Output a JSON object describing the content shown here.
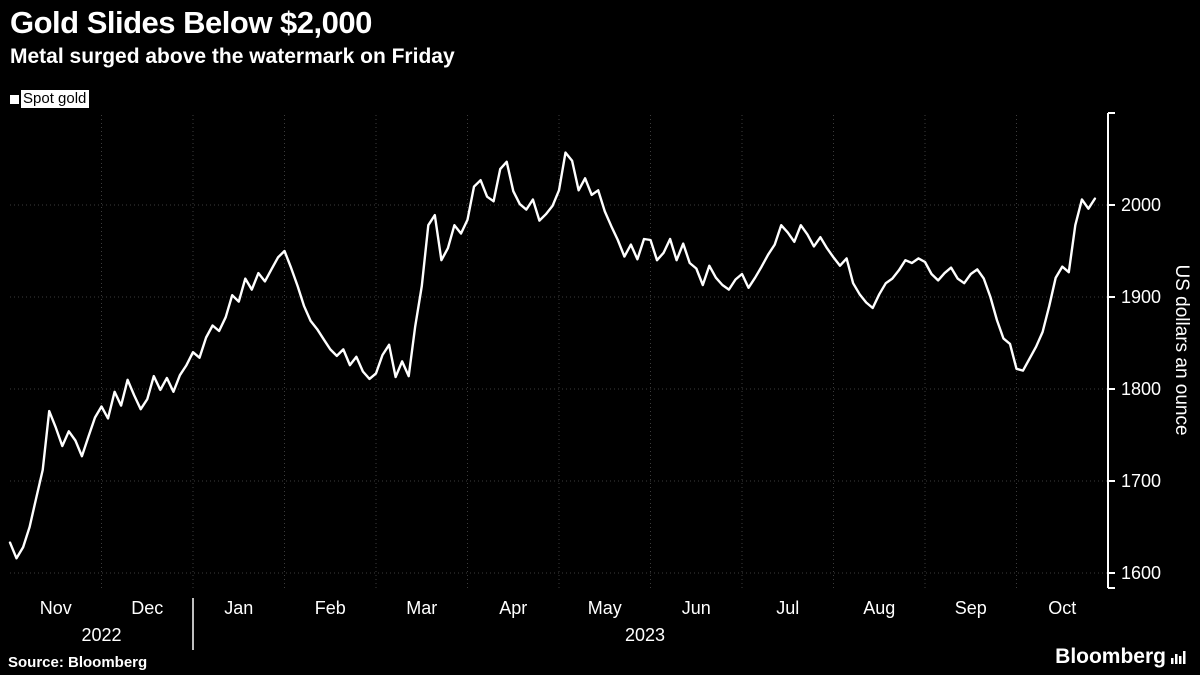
{
  "header": {
    "title": "Gold Slides Below $2,000",
    "subtitle": "Metal surged above the watermark on Friday"
  },
  "legend": {
    "label": "Spot gold"
  },
  "footer": {
    "source": "Source:  Bloomberg",
    "brand": "Bloomberg"
  },
  "chart_data": {
    "type": "line",
    "series_name": "Spot gold",
    "title": "Gold Slides Below $2,000",
    "subtitle": "Metal surged above the watermark on Friday",
    "ylabel": "US dollars an ounce",
    "y_ticks": [
      1600,
      1700,
      1800,
      1900,
      2000
    ],
    "ylim": [
      1590,
      2098
    ],
    "x_months": [
      "Nov",
      "Dec",
      "Jan",
      "Feb",
      "Mar",
      "Apr",
      "May",
      "Jun",
      "Jul",
      "Aug",
      "Sep",
      "Oct"
    ],
    "years": [
      "2022",
      "2023"
    ],
    "points_per_month": 14,
    "line_color": "#ffffff",
    "grid_color": "#3c3c3c",
    "grid": true,
    "legend_position": "top-left",
    "values": [
      1633,
      1616,
      1628,
      1650,
      1681,
      1712,
      1776,
      1758,
      1738,
      1754,
      1744,
      1727,
      1748,
      1769,
      1781,
      1768,
      1797,
      1782,
      1810,
      1793,
      1778,
      1789,
      1814,
      1799,
      1812,
      1797,
      1815,
      1826,
      1840,
      1834,
      1856,
      1869,
      1863,
      1878,
      1902,
      1895,
      1920,
      1908,
      1926,
      1917,
      1930,
      1943,
      1950,
      1932,
      1912,
      1890,
      1874,
      1865,
      1854,
      1843,
      1836,
      1843,
      1826,
      1835,
      1819,
      1811,
      1817,
      1837,
      1848,
      1813,
      1830,
      1814,
      1868,
      1912,
      1978,
      1989,
      1940,
      1953,
      1978,
      1969,
      1984,
      2020,
      2027,
      2009,
      2004,
      2039,
      2047,
      2015,
      2001,
      1995,
      2006,
      1983,
      1990,
      1999,
      2016,
      2057,
      2048,
      2016,
      2029,
      2011,
      2016,
      1993,
      1977,
      1962,
      1944,
      1957,
      1941,
      1963,
      1962,
      1940,
      1948,
      1963,
      1940,
      1958,
      1937,
      1931,
      1913,
      1934,
      1921,
      1913,
      1908,
      1919,
      1925,
      1910,
      1921,
      1933,
      1946,
      1957,
      1978,
      1970,
      1960,
      1978,
      1968,
      1955,
      1965,
      1953,
      1943,
      1934,
      1942,
      1915,
      1903,
      1894,
      1888,
      1903,
      1915,
      1920,
      1929,
      1940,
      1937,
      1942,
      1938,
      1925,
      1918,
      1926,
      1932,
      1920,
      1915,
      1925,
      1930,
      1920,
      1900,
      1875,
      1855,
      1849,
      1822,
      1820,
      1833,
      1846,
      1862,
      1890,
      1921,
      1933,
      1927,
      1978,
      2006,
      1996,
      2007
    ]
  }
}
